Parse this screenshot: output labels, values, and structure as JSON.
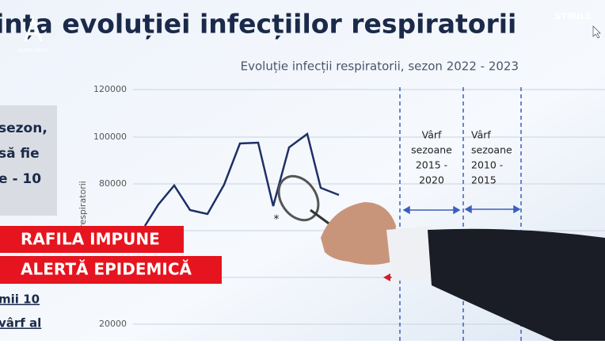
{
  "header": {
    "title": "ința evoluției infecțiilor respiratorii",
    "logo": "ALEPH NEWS",
    "section": "STIRILE"
  },
  "slide": {
    "chart_title": "Evoluție infecții respiratorii, sezon 2022 - 2023",
    "y_axis_label": "respiratorii",
    "y_tick_labels": [
      "120000",
      "100000",
      "80000",
      "20000"
    ],
    "marker": "*",
    "annotations": [
      {
        "lines": [
          "Vârf",
          "sezoane",
          "2015 -",
          "2020"
        ]
      },
      {
        "lines": [
          "Vârf",
          "sezoane",
          "2010 -",
          "2015"
        ]
      }
    ],
    "left_panel": [
      "sezon,",
      "să fie",
      "e - 10"
    ],
    "left_lower": [
      "mii 10",
      "vârf al"
    ]
  },
  "banner": {
    "lines": [
      "RAFILA IMPUNE",
      "ALERTĂ EPIDEMICĂ"
    ]
  }
}
